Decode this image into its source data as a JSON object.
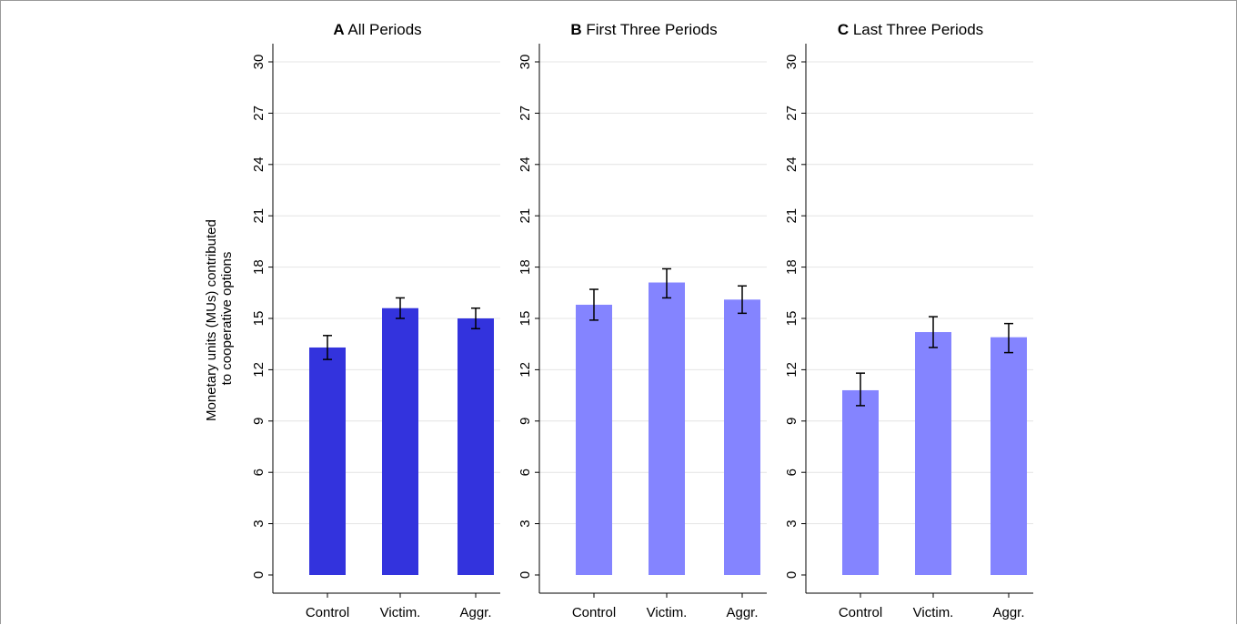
{
  "chart_data": {
    "type": "bar",
    "ylabel": [
      "Monetary units (MUs) contributed",
      "to cooperative options"
    ],
    "ylim": [
      0,
      30
    ],
    "yticks": [
      0,
      3,
      6,
      9,
      12,
      15,
      18,
      21,
      24,
      27,
      30
    ],
    "grid": true,
    "categories": [
      "Control",
      "Victim.",
      "Aggr."
    ],
    "panels": [
      {
        "letter": "A",
        "title": "All Periods",
        "color": "#3333dd",
        "values": [
          13.3,
          15.6,
          15.0
        ],
        "error_low": [
          12.6,
          15.0,
          14.4
        ],
        "error_high": [
          14.0,
          16.2,
          15.6
        ]
      },
      {
        "letter": "B",
        "title": "First Three Periods",
        "color": "#8484ff",
        "values": [
          15.8,
          17.1,
          16.1
        ],
        "error_low": [
          14.9,
          16.2,
          15.3
        ],
        "error_high": [
          16.7,
          17.9,
          16.9
        ]
      },
      {
        "letter": "C",
        "title": "Last Three Periods",
        "color": "#8484ff",
        "values": [
          10.8,
          14.2,
          13.9
        ],
        "error_low": [
          9.9,
          13.3,
          13.0
        ],
        "error_high": [
          11.8,
          15.1,
          14.7
        ]
      }
    ]
  }
}
